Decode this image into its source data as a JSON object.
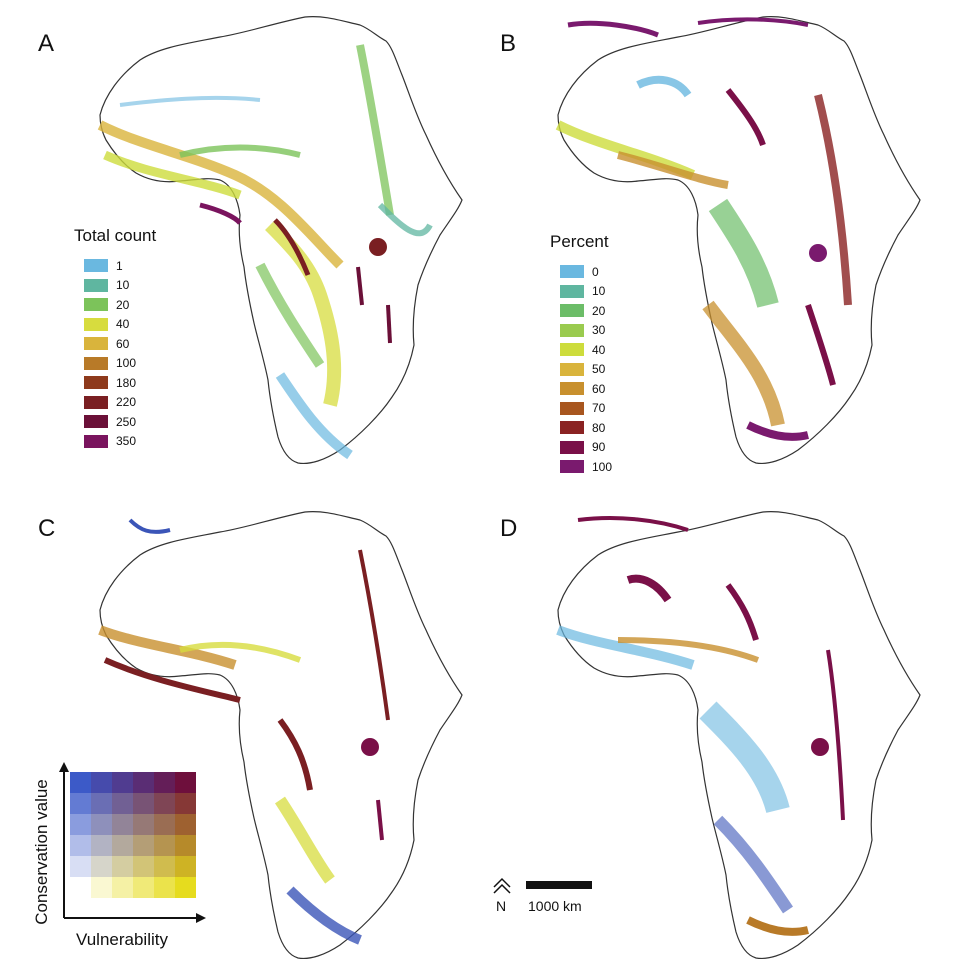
{
  "panels": {
    "a": {
      "label": "A"
    },
    "b": {
      "label": "B"
    },
    "c": {
      "label": "C"
    },
    "d": {
      "label": "D"
    }
  },
  "legend_count": {
    "title": "Total count",
    "items": [
      {
        "label": "1",
        "color": "#6ab8e0"
      },
      {
        "label": "10",
        "color": "#5fb6a0"
      },
      {
        "label": "20",
        "color": "#7cc35a"
      },
      {
        "label": "40",
        "color": "#d7dc3e"
      },
      {
        "label": "60",
        "color": "#d9b43c"
      },
      {
        "label": "100",
        "color": "#b87a28"
      },
      {
        "label": "180",
        "color": "#8e3a1c"
      },
      {
        "label": "220",
        "color": "#7a1f22"
      },
      {
        "label": "250",
        "color": "#6b1038"
      },
      {
        "label": "350",
        "color": "#7a145e"
      }
    ]
  },
  "legend_percent": {
    "title": "Percent",
    "items": [
      {
        "label": "0",
        "color": "#6ab8e0"
      },
      {
        "label": "10",
        "color": "#5fb6a0"
      },
      {
        "label": "20",
        "color": "#6cbd68"
      },
      {
        "label": "30",
        "color": "#9acb4f"
      },
      {
        "label": "40",
        "color": "#cddc3c"
      },
      {
        "label": "50",
        "color": "#d9b43c"
      },
      {
        "label": "60",
        "color": "#c8902e"
      },
      {
        "label": "70",
        "color": "#a8561f"
      },
      {
        "label": "80",
        "color": "#8a2222"
      },
      {
        "label": "90",
        "color": "#7a1048"
      },
      {
        "label": "100",
        "color": "#7a1a6e"
      }
    ]
  },
  "bivariate": {
    "y_label": "Conservation value",
    "x_label": "Vulnerability"
  },
  "scale": {
    "north": "N",
    "distance": "1000 km"
  }
}
